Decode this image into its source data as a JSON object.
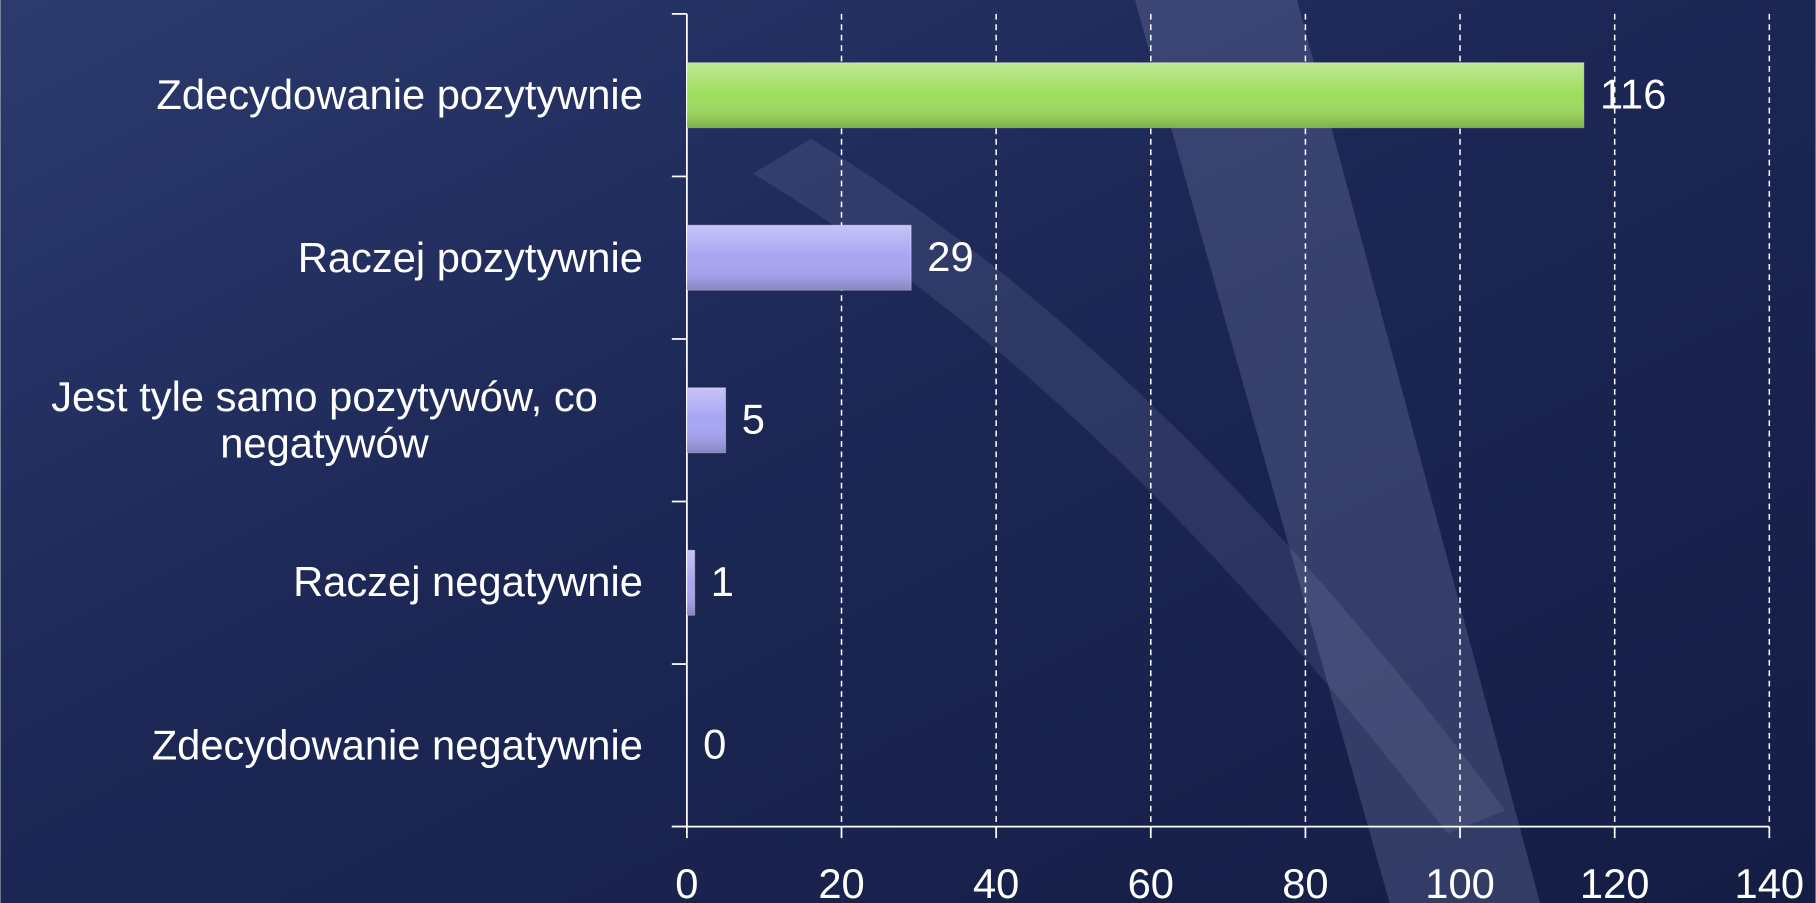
{
  "chart_data": {
    "type": "hbar",
    "categories": [
      "Zdecydowanie pozytywnie",
      "Raczej pozytywnie",
      "Jest tyle samo pozytywów, co negatywów",
      "Raczej negatywnie",
      "Zdecydowanie negatywnie"
    ],
    "values": [
      116,
      29,
      5,
      1,
      0
    ],
    "colors": [
      "#9edc5c",
      "#a7a4f2",
      "#a7a4f2",
      "#a7a4f2",
      "#a7a4f2"
    ],
    "xlim": [
      0,
      140
    ],
    "xticks": [
      0,
      20,
      40,
      60,
      80,
      100,
      120,
      140
    ],
    "grid": true
  }
}
